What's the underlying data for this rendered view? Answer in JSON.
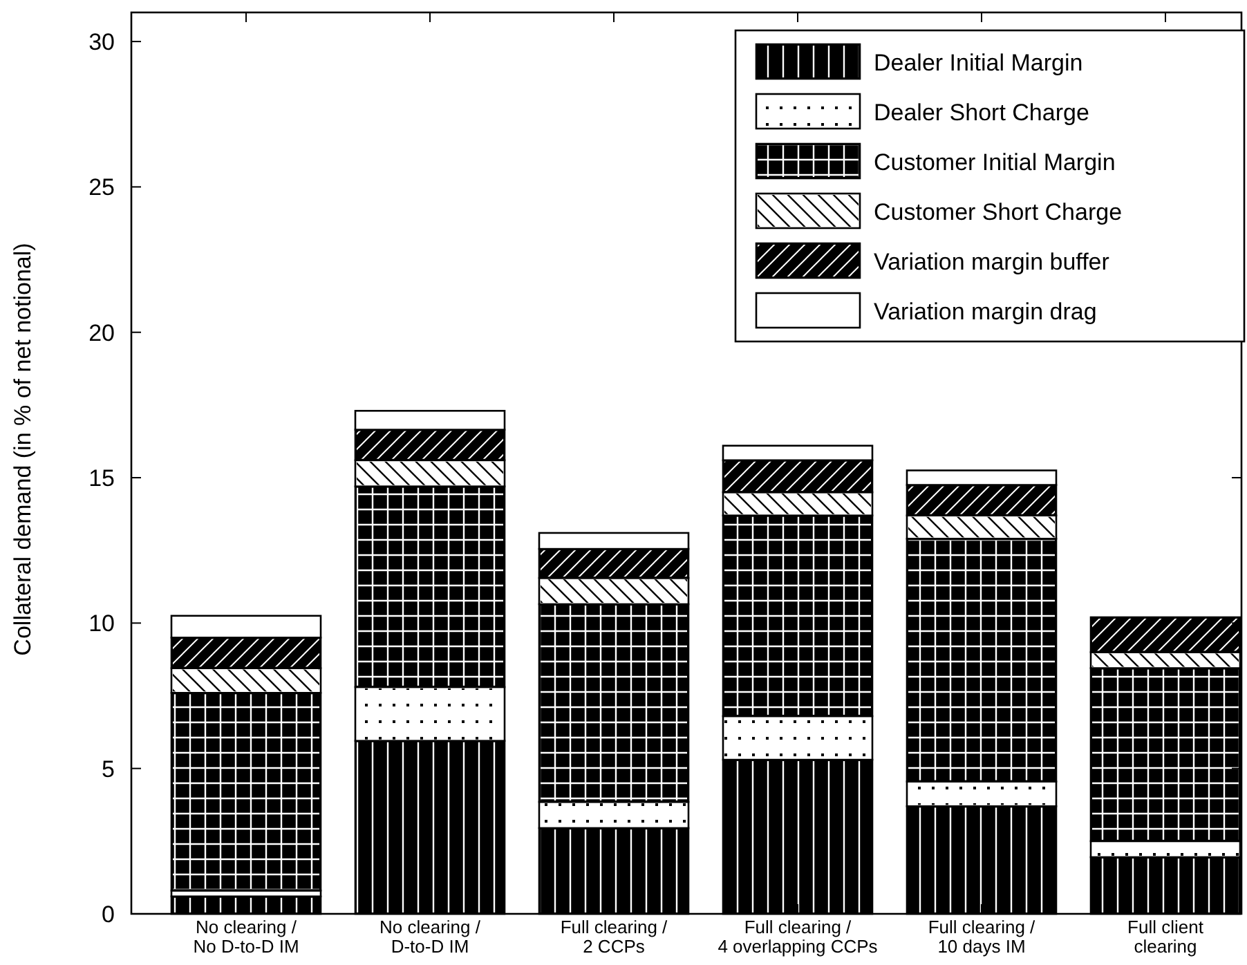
{
  "chart_data": {
    "type": "bar",
    "stacked": true,
    "ylabel": "Collateral demand (in % of net notional)",
    "categories": [
      "No clearing /\nNo D-to-D IM",
      "No clearing /\nD-to-D IM",
      "Full clearing /\n2 CCPs",
      "Full clearing /\n4 overlapping CCPs",
      "Full clearing /\n10 days IM",
      "Full client\nclearing"
    ],
    "series": [
      {
        "name": "Dealer Initial Margin",
        "color": "#000000",
        "values": [
          0.6,
          5.95,
          2.95,
          5.3,
          3.7,
          1.95
        ]
      },
      {
        "name": "Dealer Short Charge",
        "color": "#ffffff",
        "values": [
          0.2,
          1.85,
          0.9,
          1.5,
          0.85,
          0.55
        ]
      },
      {
        "name": "Customer Initial Margin",
        "color": "#000000",
        "values": [
          6.8,
          6.9,
          6.8,
          6.9,
          8.35,
          5.95
        ]
      },
      {
        "name": "Customer Short Charge",
        "color": "#ffffff",
        "values": [
          0.85,
          0.9,
          0.9,
          0.8,
          0.8,
          0.55
        ]
      },
      {
        "name": "Variation margin buffer",
        "color": "#000000",
        "values": [
          1.05,
          1.05,
          1.0,
          1.1,
          1.05,
          1.2
        ]
      },
      {
        "name": "Variation margin drag",
        "color": "#ffffff",
        "values": [
          0.75,
          0.65,
          0.55,
          0.5,
          0.5,
          0
        ]
      }
    ],
    "ylim": [
      0,
      31
    ],
    "yticks": [
      0,
      5,
      10,
      15,
      20,
      25,
      30
    ],
    "grid": false,
    "legend": "top right"
  }
}
